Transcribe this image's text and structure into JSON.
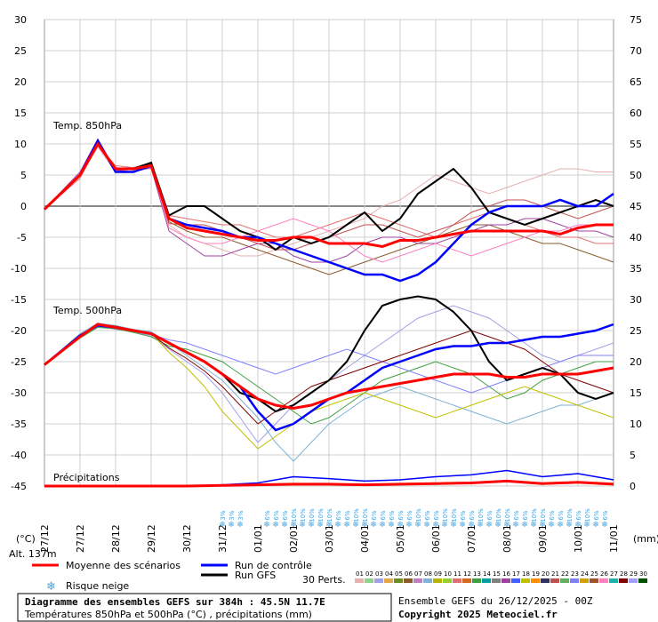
{
  "chart_data": {
    "type": "line",
    "title": "Diagramme des ensembles GEFS sur 384h : 45.5N 11.7E",
    "subtitle": "Températures 850hPa et 500hPa (°C) , précipitations (mm)",
    "run_label": "Ensemble GEFS du 26/12/2025 - 00Z",
    "copyright": "Copyright 2025 Meteociel.fr",
    "altitude_label": "Alt. 137m",
    "left_axis": {
      "unit": "(°C)",
      "ylim": [
        -45,
        30
      ],
      "ticks": [
        "30",
        "25",
        "20",
        "15",
        "10",
        "5",
        "0",
        "-5",
        "-10",
        "-15",
        "-20",
        "-25",
        "-30",
        "-35",
        "-40",
        "-45"
      ]
    },
    "right_axis": {
      "unit": "(mm)",
      "ylim": [
        0,
        75
      ],
      "ticks": [
        "75",
        "70",
        "65",
        "60",
        "55",
        "50",
        "45",
        "40",
        "35",
        "30",
        "25",
        "20",
        "15",
        "10",
        "5",
        "0"
      ]
    },
    "x_axis": {
      "range_days": 16,
      "ticks": [
        "27/12",
        "27/12",
        "28/12",
        "29/12",
        "30/12",
        "31/12",
        "01/01",
        "02/01",
        "03/01",
        "04/01",
        "05/01",
        "06/01",
        "07/01",
        "08/01",
        "09/01",
        "10/01",
        "11/01"
      ]
    },
    "panel_labels": {
      "t850": "Temp. 850hPa",
      "t500": "Temp. 500hPa",
      "precip": "Précipitations"
    },
    "legend": {
      "mean": "Moyenne des scénarios",
      "control": "Run de contrôle",
      "gfs": "Run GFS",
      "snow": "Risque neige",
      "perts": "30 Perts.",
      "pert_numbers": [
        "01",
        "02",
        "03",
        "04",
        "05",
        "06",
        "07",
        "08",
        "09",
        "10",
        "11",
        "12",
        "13",
        "14",
        "15",
        "16",
        "17",
        "18",
        "19",
        "20",
        "21",
        "22",
        "23",
        "24",
        "25",
        "26",
        "27",
        "28",
        "29",
        "30"
      ],
      "pert_colors": [
        "#e6b0b0",
        "#8fd18f",
        "#a0a0e8",
        "#e6a64c",
        "#6b8e23",
        "#8b5a2b",
        "#c080c0",
        "#7fb3d5",
        "#b5b500",
        "#9acd32",
        "#e07070",
        "#d2691e",
        "#40a040",
        "#00a0a0",
        "#808080",
        "#a040a0",
        "#4060ff",
        "#c0c000",
        "#ff8c00",
        "#303060",
        "#c05050",
        "#60b060",
        "#8080ff",
        "#d0a000",
        "#a0522d",
        "#ff80c0",
        "#20b2aa",
        "#800000",
        "#a0a0ff",
        "#005000"
      ]
    },
    "colors": {
      "mean": "#ff0000",
      "control": "#0000ff",
      "gfs": "#000000",
      "snow": "#4aa3df"
    },
    "t850": {
      "x": [
        0,
        1,
        1.5,
        2,
        2.5,
        3,
        3.5,
        4,
        4.5,
        5,
        5.5,
        6,
        6.5,
        7,
        7.5,
        8,
        8.5,
        9,
        9.5,
        10,
        10.5,
        11,
        11.5,
        12,
        12.5,
        13,
        13.5,
        14,
        14.5,
        15,
        15.5,
        16
      ],
      "mean": [
        -0.5,
        5,
        10,
        6,
        6,
        6.5,
        -2,
        -3.5,
        -4,
        -4.5,
        -5,
        -5.5,
        -5.5,
        -5,
        -5,
        -6,
        -6,
        -6,
        -6.5,
        -5.5,
        -5.5,
        -5,
        -4.5,
        -4,
        -4,
        -4,
        -4,
        -4,
        -4.5,
        -3.5,
        -3,
        -3
      ],
      "control": [
        -0.5,
        5,
        10.5,
        5.5,
        5.5,
        6.5,
        -2,
        -3,
        -3.5,
        -4,
        -5,
        -5,
        -6,
        -7,
        -8,
        -9,
        -10,
        -11,
        -11,
        -12,
        -11,
        -9,
        -6,
        -3,
        -1,
        0,
        0,
        0,
        1,
        0,
        0,
        2
      ],
      "gfs": [
        -0.5,
        5,
        10,
        6,
        6,
        7,
        -1.5,
        0,
        0,
        -2,
        -4,
        -5,
        -7,
        -5,
        -6,
        -5,
        -3,
        -1,
        -4,
        -2,
        2,
        4,
        6,
        3,
        -1,
        -2,
        -3,
        -2,
        -1,
        0,
        1,
        0
      ],
      "members": [
        [
          -0.5,
          4.8,
          9.5,
          5.5,
          6,
          6,
          -3,
          -5,
          -6,
          -7,
          -8,
          -8,
          -7,
          -6,
          -5,
          -4,
          -3,
          -2,
          0,
          1,
          3,
          5,
          4,
          3,
          2,
          3,
          4,
          5,
          6,
          6,
          5.5,
          5.5
        ],
        [
          -0.5,
          5.2,
          10.2,
          6.2,
          5.8,
          6.8,
          -2.5,
          -4,
          -5,
          -5,
          -6,
          -7,
          -8,
          -9,
          -10,
          -11,
          -10,
          -9,
          -8,
          -7,
          -6,
          -5,
          -4,
          -3,
          -3,
          -4,
          -5,
          -6,
          -6,
          -7,
          -8,
          -9
        ],
        [
          -0.5,
          4.5,
          9.8,
          6.5,
          6.2,
          7,
          -1.5,
          -2,
          -2.5,
          -3,
          -3,
          -4,
          -5,
          -5,
          -4,
          -3,
          -2,
          -1,
          -2,
          -3,
          -4,
          -5,
          -3,
          -2,
          -1,
          -2,
          -3,
          -4,
          -5,
          -5,
          -6,
          -6
        ],
        [
          -0.5,
          5.5,
          10.8,
          5.8,
          5.5,
          6.2,
          -4,
          -6,
          -8,
          -8,
          -7,
          -6,
          -6,
          -8,
          -9,
          -9,
          -8,
          -6,
          -5,
          -5,
          -6,
          -6,
          -5,
          -4,
          -3,
          -3,
          -2,
          -2,
          -3,
          -4,
          -4,
          -5
        ],
        [
          -0.5,
          4.9,
          10,
          6,
          6,
          6.5,
          -2.8,
          -3,
          -3,
          -4,
          -5,
          -6,
          -7,
          -7,
          -6,
          -5,
          -4,
          -3,
          -3,
          -4,
          -5,
          -4,
          -3,
          -1,
          0,
          1,
          1,
          0,
          -1,
          -2,
          -1,
          0
        ],
        [
          -0.5,
          5.1,
          10.1,
          6.1,
          6.1,
          6.6,
          -3.5,
          -5,
          -6,
          -6,
          -5,
          -4,
          -3,
          -2,
          -3,
          -4,
          -6,
          -8,
          -9,
          -8,
          -7,
          -6,
          -7,
          -8,
          -7,
          -6,
          -5,
          -4,
          -4,
          -3,
          -3,
          -3
        ]
      ]
    },
    "t500": {
      "x": [
        0,
        1,
        1.5,
        2,
        2.5,
        3,
        3.5,
        4,
        4.5,
        5,
        5.5,
        6,
        6.5,
        7,
        7.5,
        8,
        8.5,
        9,
        9.5,
        10,
        10.5,
        11,
        11.5,
        12,
        12.5,
        13,
        13.5,
        14,
        14.5,
        15,
        15.5,
        16
      ],
      "mean": [
        -25.5,
        -21,
        -19,
        -19.5,
        -20,
        -20.5,
        -22,
        -23.5,
        -25,
        -27,
        -29,
        -31,
        -32,
        -32.5,
        -32,
        -31,
        -30,
        -29.5,
        -29,
        -28.5,
        -28,
        -27.5,
        -27,
        -27,
        -27,
        -27.5,
        -27.5,
        -27,
        -27,
        -27,
        -26.5,
        -26
      ],
      "control": [
        -25.5,
        -20.8,
        -19.2,
        -19.5,
        -20,
        -20.5,
        -22,
        -23.5,
        -25,
        -27,
        -29,
        -33,
        -36,
        -35,
        -33,
        -31,
        -30,
        -28,
        -26,
        -25,
        -24,
        -23,
        -22.5,
        -22.5,
        -22,
        -22,
        -21.5,
        -21,
        -21,
        -20.5,
        -20,
        -19
      ],
      "gfs": [
        -25.5,
        -21,
        -19,
        -19.5,
        -20,
        -20.5,
        -22,
        -23.5,
        -25,
        -27,
        -30,
        -31,
        -33,
        -32,
        -30,
        -28,
        -25,
        -20,
        -16,
        -15,
        -14.5,
        -15,
        -17,
        -20,
        -25,
        -28,
        -27,
        -26,
        -27,
        -30,
        -31,
        -30
      ],
      "members": [
        [
          -25.5,
          -21,
          -19.3,
          -19.8,
          -20.2,
          -20.8,
          -23,
          -25,
          -27,
          -30,
          -34,
          -38,
          -35,
          -32,
          -30,
          -28,
          -26,
          -24,
          -22,
          -20,
          -18,
          -17,
          -16,
          -17,
          -18,
          -20,
          -22,
          -24,
          -25,
          -24,
          -23,
          -22
        ],
        [
          -25.5,
          -20.5,
          -18.8,
          -19.2,
          -19.8,
          -20.2,
          -22,
          -24,
          -26,
          -28,
          -31,
          -34,
          -38,
          -41,
          -38,
          -35,
          -33,
          -31,
          -30,
          -29,
          -30,
          -31,
          -32,
          -33,
          -34,
          -35,
          -34,
          -33,
          -32,
          -32,
          -31,
          -30
        ],
        [
          -25.5,
          -21.2,
          -19.5,
          -19.7,
          -20.3,
          -21,
          -22.5,
          -23,
          -24,
          -25,
          -27,
          -29,
          -31,
          -33,
          -35,
          -34,
          -32,
          -30,
          -28,
          -27,
          -26,
          -25,
          -26,
          -27,
          -29,
          -31,
          -30,
          -28,
          -27,
          -26,
          -25,
          -25
        ],
        [
          -25.5,
          -20.9,
          -19.1,
          -19.4,
          -19.9,
          -20.4,
          -23.5,
          -26,
          -29,
          -33,
          -36,
          -39,
          -37,
          -35,
          -33,
          -32,
          -31,
          -30,
          -31,
          -32,
          -33,
          -34,
          -33,
          -32,
          -31,
          -30,
          -29,
          -30,
          -31,
          -32,
          -33,
          -34
        ],
        [
          -25.5,
          -21.1,
          -19.2,
          -19.6,
          -20.1,
          -20.6,
          -21.5,
          -22,
          -23,
          -24,
          -25,
          -26,
          -27,
          -26,
          -25,
          -24,
          -23,
          -24,
          -25,
          -26,
          -27,
          -28,
          -29,
          -30,
          -29,
          -28,
          -27,
          -26,
          -25,
          -24,
          -24,
          -24
        ],
        [
          -25.5,
          -20.7,
          -19,
          -19.3,
          -19.9,
          -20.5,
          -22.8,
          -24.5,
          -26.5,
          -29,
          -32,
          -35,
          -33,
          -31,
          -29,
          -28,
          -27,
          -26,
          -25,
          -24,
          -23,
          -22,
          -21,
          -20,
          -21,
          -22,
          -23,
          -25,
          -27,
          -28,
          -29,
          -30
        ]
      ]
    },
    "precip": {
      "x": [
        0,
        1,
        2,
        3,
        4,
        5,
        6,
        7,
        8,
        9,
        10,
        11,
        12,
        13,
        14,
        15,
        16
      ],
      "mean": [
        0,
        0,
        0,
        0,
        0,
        0.1,
        0.2,
        0.3,
        0.3,
        0.2,
        0.3,
        0.4,
        0.5,
        0.8,
        0.4,
        0.6,
        0.3
      ],
      "max": [
        0,
        0,
        0,
        0,
        0,
        0.2,
        0.5,
        1.5,
        1.2,
        0.8,
        1.0,
        1.5,
        1.8,
        2.5,
        1.5,
        2.0,
        1.0
      ]
    },
    "snow_risk": {
      "x": [
        5.0,
        5.25,
        5.5,
        6.25,
        6.5,
        6.75,
        7.0,
        7.25,
        7.5,
        7.75,
        8.0,
        8.25,
        8.5,
        8.75,
        9.0,
        9.25,
        9.5,
        9.75,
        10.0,
        10.25,
        10.5,
        10.75,
        11.0,
        11.25,
        11.5,
        11.75,
        12.0,
        12.25,
        12.5,
        12.75,
        13.0,
        13.25,
        13.5,
        13.75,
        14.0,
        14.25,
        14.5,
        14.75,
        15.0,
        15.25,
        15.5,
        15.75
      ],
      "labels": [
        "3%",
        "3%",
        "3%",
        "6%",
        "6%",
        "6%",
        "10%",
        "10%",
        "10%",
        "10%",
        "10%",
        "6%",
        "6%",
        "10%",
        "10%",
        "6%",
        "6%",
        "6%",
        "6%",
        "6%",
        "10%",
        "6%",
        "6%",
        "10%",
        "10%",
        "6%",
        "6%",
        "10%",
        "6%",
        "10%",
        "10%",
        "6%",
        "6%",
        "10%",
        "10%",
        "6%",
        "6%",
        "10%",
        "6%",
        "10%",
        "6%",
        "6%"
      ]
    }
  }
}
